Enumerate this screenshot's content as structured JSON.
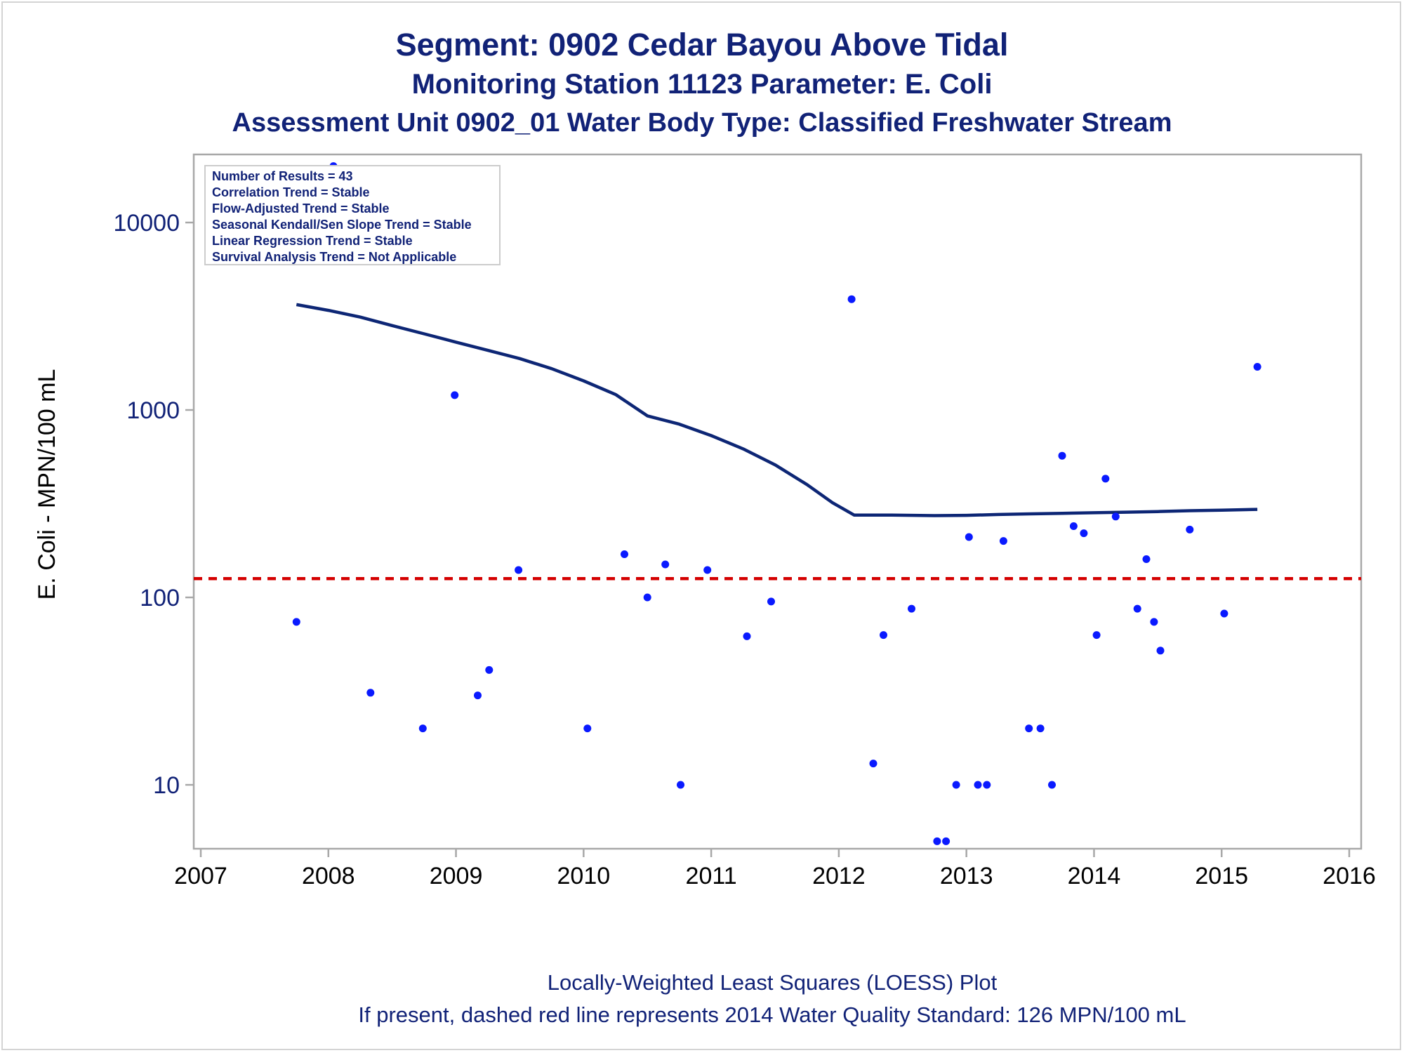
{
  "titles": {
    "line1": "Segment: 0902  Cedar Bayou Above Tidal",
    "line2": "Monitoring Station 11123 Parameter: E. Coli",
    "line3": "Assessment Unit 0902_01   Water Body Type: Classified Freshwater Stream"
  },
  "footnotes": {
    "line1": "Locally-Weighted Least Squares (LOESS) Plot",
    "line2": "If present, dashed red line represents 2014 Water Quality Standard: 126 MPN/100 mL"
  },
  "legend": [
    "Number of Results = 43",
    "Correlation Trend = Stable",
    "Flow-Adjusted Trend = Stable",
    "Seasonal Kendall/Sen Slope Trend = Stable",
    "Linear Regression Trend = Stable",
    "Survival Analysis Trend = Not Applicable"
  ],
  "colors": {
    "text": "#112277",
    "points": "#0a1aff",
    "loess": "#0d2675",
    "standard": "#d40000",
    "axis": "#a8a8a8"
  },
  "chart_data": {
    "type": "scatter",
    "ylabel": "E. Coli - MPN/100 mL",
    "yscale": "log",
    "ylim": [
      4.5,
      20000
    ],
    "xlim": [
      2007,
      2016
    ],
    "x_ticks": [
      2007,
      2008,
      2009,
      2010,
      2011,
      2012,
      2013,
      2014,
      2015,
      2016
    ],
    "y_ticks": [
      10,
      100,
      1000,
      10000
    ],
    "standard_line": 126,
    "points": [
      [
        2007.75,
        74
      ],
      [
        2008.04,
        20000
      ],
      [
        2008.33,
        31
      ],
      [
        2008.74,
        20
      ],
      [
        2008.99,
        1200
      ],
      [
        2009.17,
        30
      ],
      [
        2009.26,
        41
      ],
      [
        2009.49,
        140
      ],
      [
        2010.03,
        20
      ],
      [
        2010.32,
        170
      ],
      [
        2010.5,
        100
      ],
      [
        2010.64,
        150
      ],
      [
        2010.76,
        10
      ],
      [
        2010.97,
        140
      ],
      [
        2011.28,
        62
      ],
      [
        2011.47,
        95
      ],
      [
        2012.1,
        3900
      ],
      [
        2012.27,
        13
      ],
      [
        2012.35,
        63
      ],
      [
        2012.57,
        87
      ],
      [
        2012.77,
        5
      ],
      [
        2012.84,
        5
      ],
      [
        2012.92,
        10
      ],
      [
        2013.02,
        210
      ],
      [
        2013.09,
        10
      ],
      [
        2013.16,
        10
      ],
      [
        2013.29,
        200
      ],
      [
        2013.49,
        20
      ],
      [
        2013.58,
        20
      ],
      [
        2013.67,
        10
      ],
      [
        2013.75,
        570
      ],
      [
        2013.84,
        240
      ],
      [
        2013.92,
        220
      ],
      [
        2014.02,
        63
      ],
      [
        2014.09,
        430
      ],
      [
        2014.17,
        270
      ],
      [
        2014.34,
        87
      ],
      [
        2014.41,
        160
      ],
      [
        2014.47,
        74
      ],
      [
        2014.52,
        52
      ],
      [
        2014.75,
        230
      ],
      [
        2015.02,
        82
      ],
      [
        2015.28,
        1700
      ]
    ],
    "loess": [
      [
        2007.75,
        3650
      ],
      [
        2008.0,
        3400
      ],
      [
        2008.25,
        3130
      ],
      [
        2008.5,
        2820
      ],
      [
        2008.75,
        2550
      ],
      [
        2009.0,
        2300
      ],
      [
        2009.25,
        2080
      ],
      [
        2009.5,
        1880
      ],
      [
        2009.75,
        1660
      ],
      [
        2010.0,
        1430
      ],
      [
        2010.25,
        1210
      ],
      [
        2010.5,
        930
      ],
      [
        2010.75,
        840
      ],
      [
        2011.0,
        730
      ],
      [
        2011.25,
        620
      ],
      [
        2011.5,
        510
      ],
      [
        2011.75,
        400
      ],
      [
        2011.95,
        320
      ],
      [
        2012.12,
        275
      ],
      [
        2012.4,
        275
      ],
      [
        2012.75,
        273
      ],
      [
        2013.0,
        274
      ],
      [
        2013.25,
        277
      ],
      [
        2013.5,
        279
      ],
      [
        2013.75,
        281
      ],
      [
        2014.0,
        283
      ],
      [
        2014.25,
        285
      ],
      [
        2014.5,
        287
      ],
      [
        2014.75,
        290
      ],
      [
        2015.0,
        292
      ],
      [
        2015.28,
        295
      ]
    ]
  }
}
